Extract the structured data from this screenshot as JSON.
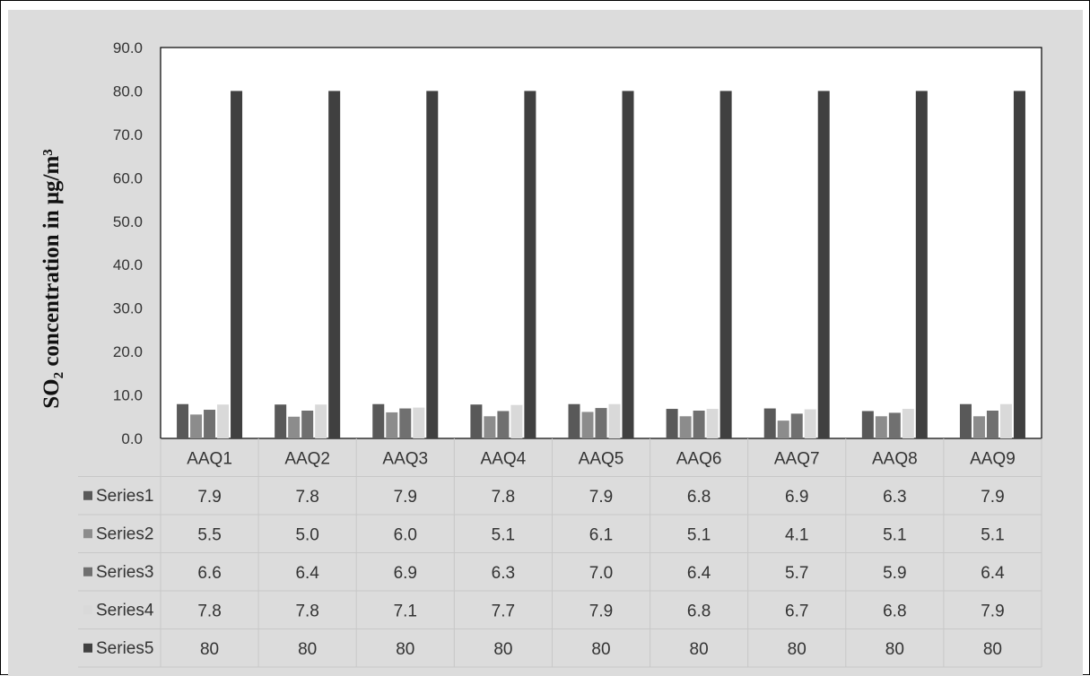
{
  "chart_data": {
    "type": "bar",
    "ylabel": "SO₂ concentration  in  μg/m³",
    "xlabel": "",
    "title": "",
    "ylim": [
      0,
      90
    ],
    "ytick_labels": [
      "0.0",
      "10.0",
      "20.0",
      "30.0",
      "40.0",
      "50.0",
      "60.0",
      "70.0",
      "80.0",
      "90.0"
    ],
    "categories": [
      "AAQ1",
      "AAQ2",
      "AAQ3",
      "AAQ4",
      "AAQ5",
      "AAQ6",
      "AAQ7",
      "AAQ8",
      "AAQ9"
    ],
    "legend": "data-table",
    "grid": false,
    "series": [
      {
        "name": "Series1",
        "color": "#595959",
        "values": [
          7.9,
          7.8,
          7.9,
          7.8,
          7.9,
          6.8,
          6.9,
          6.3,
          7.9
        ],
        "labels": [
          "7.9",
          "7.8",
          "7.9",
          "7.8",
          "7.9",
          "6.8",
          "6.9",
          "6.3",
          "7.9"
        ]
      },
      {
        "name": "Series2",
        "color": "#8c8c8c",
        "values": [
          5.5,
          5.0,
          6.0,
          5.1,
          6.1,
          5.1,
          4.1,
          5.1,
          5.1
        ],
        "labels": [
          "5.5",
          "5.0",
          "6.0",
          "5.1",
          "6.1",
          "5.1",
          "4.1",
          "5.1",
          "5.1"
        ]
      },
      {
        "name": "Series3",
        "color": "#707070",
        "values": [
          6.6,
          6.4,
          6.9,
          6.3,
          7.0,
          6.4,
          5.7,
          5.9,
          6.4
        ],
        "labels": [
          "6.6",
          "6.4",
          "6.9",
          "6.3",
          "7.0",
          "6.4",
          "5.7",
          "5.9",
          "6.4"
        ]
      },
      {
        "name": "Series4",
        "color": "#d9d9d9",
        "values": [
          7.8,
          7.8,
          7.1,
          7.7,
          7.9,
          6.8,
          6.7,
          6.8,
          7.9
        ],
        "labels": [
          "7.8",
          "7.8",
          "7.1",
          "7.7",
          "7.9",
          "6.8",
          "6.7",
          "6.8",
          "7.9"
        ]
      },
      {
        "name": "Series5",
        "color": "#404040",
        "values": [
          80,
          80,
          80,
          80,
          80,
          80,
          80,
          80,
          80
        ],
        "labels": [
          "80",
          "80",
          "80",
          "80",
          "80",
          "80",
          "80",
          "80",
          "80"
        ]
      }
    ]
  }
}
